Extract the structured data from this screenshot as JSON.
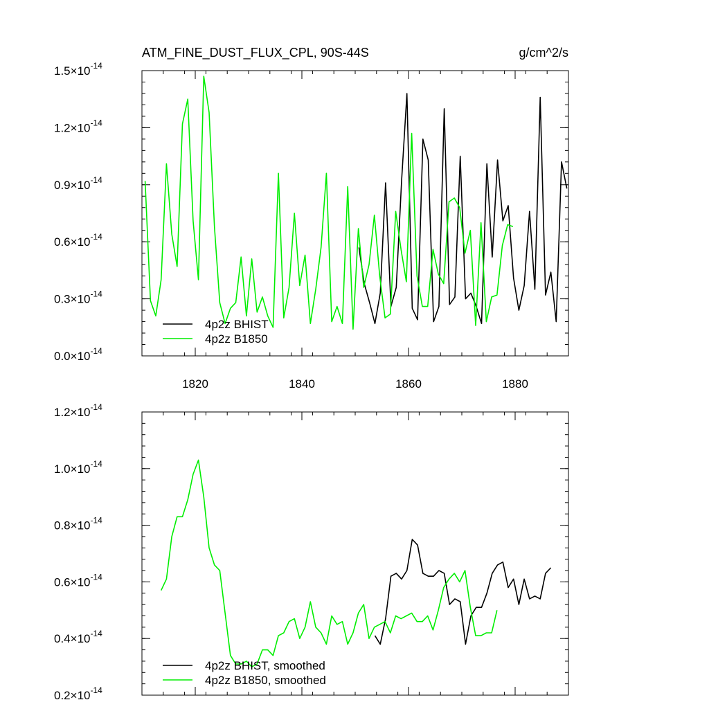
{
  "chart_data": [
    {
      "type": "line",
      "title": "ATM_FINE_DUST_FLUX_CPL, 90S-44S",
      "units": "g/cm^2/s",
      "xlabel": "",
      "ylabel": "",
      "xlim": [
        1810,
        1890
      ],
      "ylim": [
        0.0,
        1.5
      ],
      "y_exponent": "-14",
      "x_ticks": [
        1820,
        1840,
        1860,
        1880
      ],
      "x_tick_labels": [
        "1820",
        "1840",
        "1860",
        "1880"
      ],
      "y_ticks": [
        0.0,
        0.3,
        0.6,
        0.9,
        1.2,
        1.5
      ],
      "y_tick_labels": [
        "0.0",
        "0.3",
        "0.6",
        "0.9",
        "1.2",
        "1.5"
      ],
      "legend_position": "bottom-left",
      "series": [
        {
          "name": "4p2z BHIST",
          "color": "#000000",
          "x": [
            1850.7,
            1851.7,
            1852.7,
            1853.7,
            1854.7,
            1855.7,
            1856.7,
            1857.7,
            1858.7,
            1859.7,
            1860.7,
            1861.7,
            1862.7,
            1863.7,
            1864.7,
            1865.7,
            1866.7,
            1867.7,
            1868.7,
            1869.7,
            1870.7,
            1871.7,
            1872.7,
            1873.7,
            1874.7,
            1875.7,
            1876.7,
            1877.7,
            1878.7,
            1879.7,
            1880.7,
            1881.7,
            1882.7,
            1883.7,
            1884.7,
            1885.7,
            1886.7,
            1887.7,
            1888.7,
            1889.7
          ],
          "y": [
            0.57,
            0.38,
            0.28,
            0.17,
            0.33,
            0.91,
            0.26,
            0.36,
            0.92,
            1.38,
            0.25,
            0.19,
            1.14,
            1.03,
            0.18,
            0.26,
            1.3,
            0.27,
            0.31,
            1.05,
            0.3,
            0.33,
            0.26,
            0.17,
            1.01,
            0.52,
            1.03,
            0.71,
            0.79,
            0.41,
            0.24,
            0.37,
            0.76,
            0.35,
            1.36,
            0.32,
            0.44,
            0.18,
            1.02,
            0.88
          ]
        },
        {
          "name": "4p2z B1850",
          "color": "#00ee00",
          "x": [
            1810.6,
            1811.6,
            1812.6,
            1813.6,
            1814.6,
            1815.6,
            1816.6,
            1817.6,
            1818.6,
            1819.6,
            1820.6,
            1821.6,
            1822.6,
            1823.6,
            1824.6,
            1825.6,
            1826.6,
            1827.6,
            1828.6,
            1829.6,
            1830.6,
            1831.6,
            1832.6,
            1833.6,
            1834.6,
            1835.6,
            1836.6,
            1837.6,
            1838.6,
            1839.6,
            1840.6,
            1841.6,
            1842.6,
            1843.6,
            1844.6,
            1845.6,
            1846.6,
            1847.6,
            1848.6,
            1849.6,
            1850.6,
            1851.6,
            1852.6,
            1853.6,
            1854.6,
            1855.6,
            1856.6,
            1857.6,
            1858.6,
            1859.6,
            1860.6,
            1861.6,
            1862.6,
            1863.6,
            1864.6,
            1865.6,
            1866.6,
            1867.6,
            1868.6,
            1869.6,
            1870.6,
            1871.6,
            1872.6,
            1873.6,
            1874.6,
            1875.6,
            1876.6,
            1877.6,
            1878.6,
            1879.6
          ],
          "y": [
            0.92,
            0.29,
            0.21,
            0.4,
            1.01,
            0.64,
            0.47,
            1.22,
            1.35,
            0.71,
            0.4,
            1.47,
            1.28,
            0.68,
            0.28,
            0.17,
            0.25,
            0.28,
            0.52,
            0.21,
            0.51,
            0.23,
            0.31,
            0.21,
            0.15,
            0.96,
            0.2,
            0.36,
            0.75,
            0.37,
            0.53,
            0.17,
            0.35,
            0.57,
            0.96,
            0.18,
            0.26,
            0.17,
            0.89,
            0.14,
            0.67,
            0.36,
            0.48,
            0.74,
            0.42,
            0.2,
            0.22,
            0.76,
            0.56,
            0.39,
            1.17,
            0.42,
            0.26,
            0.26,
            0.56,
            0.43,
            0.38,
            0.81,
            0.83,
            0.78,
            0.54,
            0.66,
            0.16,
            0.7,
            0.18,
            0.31,
            0.32,
            0.58,
            0.69,
            0.68
          ]
        }
      ]
    },
    {
      "type": "line",
      "title": "",
      "xlabel": "",
      "ylabel": "",
      "xlim": [
        1810,
        1890
      ],
      "ylim": [
        0.2,
        1.2
      ],
      "y_exponent": "-14",
      "x_ticks": [
        1820,
        1840,
        1860,
        1880
      ],
      "y_ticks": [
        0.2,
        0.4,
        0.6,
        0.8,
        1.0,
        1.2
      ],
      "y_tick_labels": [
        "0.2",
        "0.4",
        "0.6",
        "0.8",
        "1.0",
        "1.2"
      ],
      "legend_position": "bottom-left",
      "series": [
        {
          "name": "4p2z BHIST, smoothed",
          "color": "#000000",
          "x": [
            1853.7,
            1854.7,
            1855.7,
            1856.7,
            1857.7,
            1858.7,
            1859.7,
            1860.7,
            1861.7,
            1862.7,
            1863.7,
            1864.7,
            1865.7,
            1866.7,
            1867.7,
            1868.7,
            1869.7,
            1870.7,
            1871.7,
            1872.7,
            1873.7,
            1874.7,
            1875.7,
            1876.7,
            1877.7,
            1878.7,
            1879.7,
            1880.7,
            1881.7,
            1882.7,
            1883.7,
            1884.7,
            1885.7,
            1886.7
          ],
          "y": [
            0.41,
            0.38,
            0.47,
            0.62,
            0.63,
            0.61,
            0.64,
            0.75,
            0.73,
            0.63,
            0.62,
            0.62,
            0.64,
            0.63,
            0.52,
            0.54,
            0.53,
            0.38,
            0.48,
            0.51,
            0.51,
            0.56,
            0.63,
            0.66,
            0.67,
            0.58,
            0.61,
            0.52,
            0.61,
            0.54,
            0.55,
            0.54,
            0.63,
            0.65
          ]
        },
        {
          "name": "4p2z B1850, smoothed",
          "color": "#00ee00",
          "x": [
            1813.6,
            1814.6,
            1815.6,
            1816.6,
            1817.6,
            1818.6,
            1819.6,
            1820.6,
            1821.6,
            1822.6,
            1823.6,
            1824.6,
            1825.6,
            1826.6,
            1827.6,
            1828.6,
            1829.6,
            1830.6,
            1831.6,
            1832.6,
            1833.6,
            1834.6,
            1835.6,
            1836.6,
            1837.6,
            1838.6,
            1839.6,
            1840.6,
            1841.6,
            1842.6,
            1843.6,
            1844.6,
            1845.6,
            1846.6,
            1847.6,
            1848.6,
            1849.6,
            1850.6,
            1851.6,
            1852.6,
            1853.6,
            1854.6,
            1855.6,
            1856.6,
            1857.6,
            1858.6,
            1859.6,
            1860.6,
            1861.6,
            1862.6,
            1863.6,
            1864.6,
            1865.6,
            1866.6,
            1867.6,
            1868.6,
            1869.6,
            1870.6,
            1871.6,
            1872.6,
            1873.6,
            1874.6,
            1875.6,
            1876.6
          ],
          "y": [
            0.57,
            0.61,
            0.76,
            0.83,
            0.83,
            0.89,
            0.98,
            1.03,
            0.9,
            0.72,
            0.66,
            0.64,
            0.49,
            0.34,
            0.31,
            0.31,
            0.32,
            0.3,
            0.31,
            0.36,
            0.36,
            0.34,
            0.41,
            0.42,
            0.46,
            0.47,
            0.4,
            0.44,
            0.53,
            0.44,
            0.42,
            0.38,
            0.48,
            0.45,
            0.46,
            0.38,
            0.42,
            0.49,
            0.52,
            0.4,
            0.44,
            0.45,
            0.46,
            0.42,
            0.48,
            0.47,
            0.48,
            0.49,
            0.46,
            0.46,
            0.48,
            0.43,
            0.5,
            0.58,
            0.61,
            0.63,
            0.6,
            0.64,
            0.51,
            0.41,
            0.41,
            0.42,
            0.42,
            0.5
          ]
        }
      ]
    }
  ]
}
